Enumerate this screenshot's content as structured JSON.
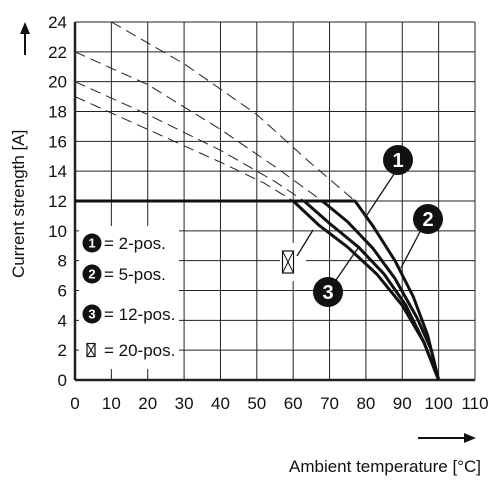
{
  "chart_data": {
    "type": "line",
    "xlabel": "Ambient temperature [°C]",
    "ylabel": "Current strength [A]",
    "xlim": [
      0,
      110
    ],
    "ylim": [
      0,
      24
    ],
    "x_ticks": [
      "0",
      "10",
      "20",
      "30",
      "40",
      "50",
      "60",
      "70",
      "80",
      "90",
      "100",
      "110"
    ],
    "y_ticks": [
      "0",
      "2",
      "4",
      "6",
      "8",
      "10",
      "12",
      "14",
      "16",
      "18",
      "20",
      "22",
      "24"
    ],
    "grid": true,
    "series": [
      {
        "name": "2-pos.",
        "marker": "1",
        "solid": [
          [
            0,
            12
          ],
          [
            77,
            12
          ],
          [
            82,
            10.3
          ],
          [
            88,
            8
          ],
          [
            93,
            5.6
          ],
          [
            97,
            3
          ],
          [
            100,
            0
          ]
        ],
        "dashed": [
          [
            10,
            24
          ],
          [
            30,
            21.2
          ],
          [
            50,
            17.8
          ],
          [
            65,
            14.5
          ],
          [
            77,
            12
          ]
        ]
      },
      {
        "name": "5-pos.",
        "marker": "2",
        "solid": [
          [
            0,
            12
          ],
          [
            68,
            12
          ],
          [
            75,
            10.6
          ],
          [
            82,
            8.8
          ],
          [
            88,
            6.8
          ],
          [
            94,
            4.2
          ],
          [
            98,
            2
          ],
          [
            100,
            0
          ]
        ],
        "dashed": [
          [
            0,
            22
          ],
          [
            20,
            19.8
          ],
          [
            40,
            16.8
          ],
          [
            55,
            14.3
          ],
          [
            68,
            12
          ]
        ]
      },
      {
        "name": "12-pos.",
        "marker": "3",
        "solid": [
          [
            0,
            12
          ],
          [
            63,
            12
          ],
          [
            70,
            10.5
          ],
          [
            78,
            8.9
          ],
          [
            85,
            7.1
          ],
          [
            91,
            5
          ],
          [
            96,
            2.5
          ],
          [
            100,
            0
          ]
        ],
        "dashed": [
          [
            0,
            20
          ],
          [
            20,
            17.8
          ],
          [
            40,
            15.4
          ],
          [
            55,
            13.3
          ],
          [
            63,
            12
          ]
        ]
      },
      {
        "name": "20-pos.",
        "marker": "box",
        "solid": [
          [
            0,
            12
          ],
          [
            60,
            12
          ],
          [
            67,
            10.4
          ],
          [
            75,
            8.9
          ],
          [
            83,
            7.1
          ],
          [
            90,
            5
          ],
          [
            96,
            2.5
          ],
          [
            100,
            0
          ]
        ],
        "dashed": [
          [
            0,
            19
          ],
          [
            20,
            16.8
          ],
          [
            40,
            14.6
          ],
          [
            52,
            13.2
          ],
          [
            60,
            12
          ]
        ]
      }
    ],
    "legend": {
      "placement": "left",
      "entries": [
        {
          "marker": "1",
          "text": "= 2-pos."
        },
        {
          "marker": "2",
          "text": "= 5-pos."
        },
        {
          "marker": "3",
          "text": "= 12-pos."
        },
        {
          "marker": "box",
          "text": "= 20-pos."
        }
      ]
    },
    "callouts": [
      "1",
      "2",
      "3",
      "box"
    ]
  }
}
